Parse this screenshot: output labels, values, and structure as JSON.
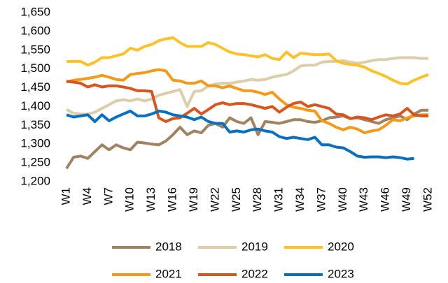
{
  "chart_data": {
    "type": "line",
    "categories": [
      "W1",
      null,
      null,
      "W4",
      null,
      null,
      "W7",
      null,
      null,
      "W10",
      null,
      null,
      "W13",
      null,
      null,
      "W16",
      null,
      null,
      "W19",
      null,
      null,
      "W22",
      null,
      null,
      "W25",
      null,
      null,
      "W28",
      null,
      null,
      "W31",
      null,
      null,
      "W34",
      null,
      null,
      "W37",
      null,
      null,
      "W40",
      null,
      null,
      "W43",
      null,
      null,
      "W46",
      null,
      null,
      "W49",
      null,
      null,
      "W52"
    ],
    "series": [
      {
        "name": "2018",
        "color": "#a08363",
        "values": [
          1235,
          1265,
          1268,
          1262,
          1280,
          1298,
          1285,
          1298,
          1290,
          1285,
          1305,
          1303,
          1300,
          1298,
          1308,
          1325,
          1345,
          1325,
          1335,
          1330,
          1350,
          1355,
          1345,
          1370,
          1360,
          1355,
          1370,
          1325,
          1360,
          1358,
          1355,
          1360,
          1365,
          1365,
          1360,
          1358,
          1362,
          1370,
          1372,
          1375,
          1368,
          1370,
          1365,
          1360,
          1355,
          1365,
          1370,
          1375,
          1365,
          1380,
          1390,
          1390
        ]
      },
      {
        "name": "2019",
        "color": "#dccdab",
        "values": [
          1392,
          1382,
          1380,
          1380,
          1385,
          1395,
          1405,
          1415,
          1418,
          1415,
          1420,
          1415,
          1420,
          1430,
          1435,
          1440,
          1445,
          1400,
          1440,
          1442,
          1455,
          1460,
          1462,
          1462,
          1465,
          1468,
          1472,
          1470,
          1472,
          1478,
          1482,
          1485,
          1495,
          1508,
          1510,
          1510,
          1518,
          1520,
          1520,
          1522,
          1518,
          1515,
          1518,
          1522,
          1525,
          1525,
          1528,
          1530,
          1530,
          1530,
          1528,
          1528
        ]
      },
      {
        "name": "2020",
        "color": "#fcc22e",
        "values": [
          1520,
          1520,
          1520,
          1510,
          1518,
          1530,
          1530,
          1535,
          1540,
          1555,
          1550,
          1560,
          1565,
          1575,
          1580,
          1583,
          1570,
          1560,
          1560,
          1560,
          1570,
          1565,
          1555,
          1545,
          1540,
          1538,
          1535,
          1532,
          1538,
          1528,
          1525,
          1545,
          1530,
          1542,
          1540,
          1538,
          1538,
          1540,
          1522,
          1515,
          1512,
          1510,
          1505,
          1495,
          1488,
          1480,
          1470,
          1462,
          1460,
          1470,
          1478,
          1485
        ]
      },
      {
        "name": "2021",
        "color": "#f39a1b",
        "values": [
          1465,
          1470,
          1472,
          1475,
          1478,
          1483,
          1478,
          1472,
          1470,
          1485,
          1488,
          1490,
          1495,
          1498,
          1495,
          1470,
          1468,
          1462,
          1462,
          1468,
          1455,
          1455,
          1450,
          1455,
          1448,
          1442,
          1442,
          1438,
          1432,
          1438,
          1420,
          1405,
          1398,
          1395,
          1390,
          1388,
          1362,
          1355,
          1345,
          1338,
          1345,
          1340,
          1330,
          1335,
          1338,
          1350,
          1365,
          1362,
          1370,
          1375,
          1378,
          1378
        ]
      },
      {
        "name": "2022",
        "color": "#d5561f",
        "values": [
          1467,
          1465,
          1462,
          1452,
          1458,
          1452,
          1455,
          1455,
          1452,
          1448,
          1442,
          1442,
          1440,
          1370,
          1360,
          1368,
          1370,
          1382,
          1395,
          1380,
          1392,
          1405,
          1410,
          1405,
          1408,
          1408,
          1405,
          1400,
          1395,
          1400,
          1385,
          1398,
          1408,
          1412,
          1400,
          1405,
          1400,
          1395,
          1380,
          1378,
          1368,
          1372,
          1370,
          1365,
          1372,
          1378,
          1375,
          1380,
          1395,
          1378,
          1375,
          1375
        ]
      },
      {
        "name": "2023",
        "color": "#0a6fbd",
        "values": [
          1378,
          1372,
          1375,
          1378,
          1360,
          1378,
          1362,
          1372,
          1380,
          1388,
          1375,
          1375,
          1380,
          1388,
          1385,
          1378,
          1375,
          1372,
          1365,
          1372,
          1360,
          1355,
          1355,
          1332,
          1335,
          1332,
          1338,
          1340,
          1335,
          1332,
          1320,
          1315,
          1318,
          1315,
          1312,
          1318,
          1298,
          1298,
          1292,
          1290,
          1280,
          1268,
          1265,
          1266,
          1266,
          1264,
          1266,
          1264,
          1260,
          1262,
          null,
          null
        ]
      }
    ],
    "ylim": [
      1200,
      1650
    ],
    "yticks": [
      {
        "value": 1200,
        "label": "1,200"
      },
      {
        "value": 1250,
        "label": "1,250"
      },
      {
        "value": 1300,
        "label": "1,300"
      },
      {
        "value": 1350,
        "label": "1,350"
      },
      {
        "value": 1400,
        "label": "1,400"
      },
      {
        "value": 1450,
        "label": "1,450"
      },
      {
        "value": 1500,
        "label": "1,500"
      },
      {
        "value": 1550,
        "label": "1,550"
      },
      {
        "value": 1600,
        "label": "1,600"
      },
      {
        "value": 1650,
        "label": "1,650"
      }
    ],
    "grid": false,
    "legend": "bottom"
  }
}
